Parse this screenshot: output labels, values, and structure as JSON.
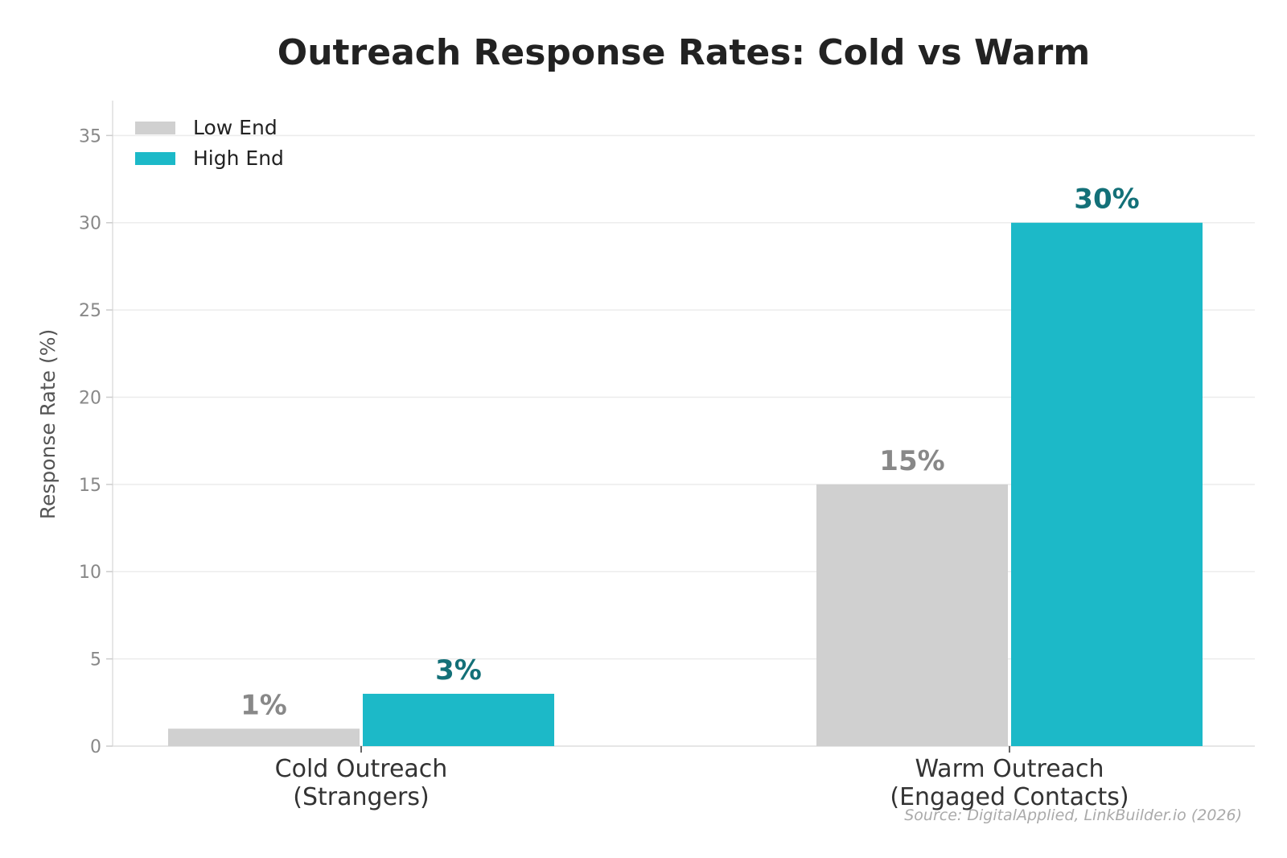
{
  "chart_data": {
    "type": "bar",
    "title": "Outreach Response Rates: Cold vs Warm",
    "ylabel": "Response Rate (%)",
    "xlabel": "",
    "ylim": [
      0,
      37
    ],
    "yticks": [
      0,
      5,
      10,
      15,
      20,
      25,
      30,
      35
    ],
    "grid": true,
    "legend_position": "top-left",
    "categories": [
      [
        "Cold Outreach",
        "(Strangers)"
      ],
      [
        "Warm Outreach",
        "(Engaged Contacts)"
      ]
    ],
    "series": [
      {
        "name": "Low End",
        "values": [
          1,
          15
        ],
        "labels": [
          "1%",
          "15%"
        ],
        "color": "#d0d0d0",
        "label_color": "#888888"
      },
      {
        "name": "High End",
        "values": [
          3,
          30
        ],
        "labels": [
          "3%",
          "30%"
        ],
        "color": "#1cb9c8",
        "label_color": "#137078"
      }
    ],
    "source": "Source: DigitalApplied, LinkBuilder.io (2026)"
  }
}
